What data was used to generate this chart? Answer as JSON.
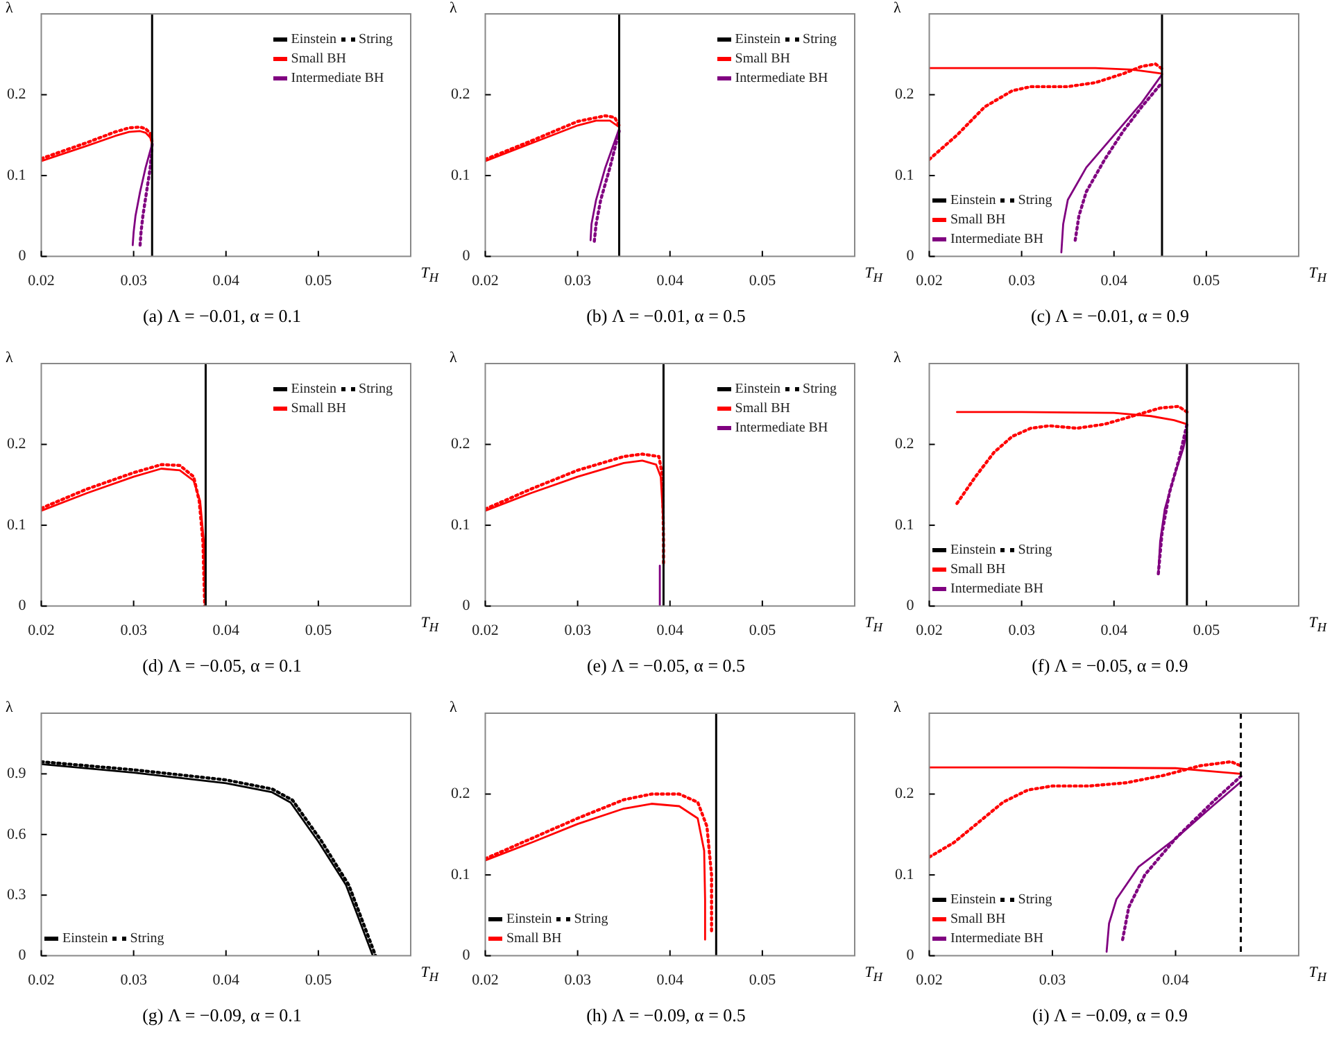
{
  "chart_data": [
    {
      "type": "line",
      "title": "(a) Λ = −0.01, α = 0.1",
      "xlabel": "T$_{H}$",
      "ylabel": "λ",
      "xlim": [
        0.02,
        0.06
      ],
      "xticks": [
        0.02,
        0.03,
        0.04,
        0.05
      ],
      "ylim": [
        0,
        0.3
      ],
      "yticks": [
        0,
        0.1,
        0.2
      ],
      "legend": "top right",
      "annotations": [
        "Einstein",
        "String"
      ],
      "ref_lines": [
        {
          "axis": "x",
          "value": 0.032,
          "color": "#000000",
          "line_style": "solid"
        }
      ],
      "series": [
        {
          "name": "Small BH",
          "color": "#ff0000",
          "line_style": "solid",
          "x": [
            0.02,
            0.025,
            0.028,
            0.0295,
            0.0307,
            0.0313,
            0.0318,
            0.032
          ],
          "values": [
            0.118,
            0.137,
            0.149,
            0.154,
            0.155,
            0.153,
            0.147,
            0.139
          ]
        },
        {
          "color": "#ff0000",
          "line_style": "dotted",
          "x": [
            0.02,
            0.025,
            0.028,
            0.0295,
            0.0307,
            0.0313,
            0.0318,
            0.032
          ],
          "values": [
            0.121,
            0.141,
            0.154,
            0.159,
            0.16,
            0.158,
            0.152,
            0.142
          ]
        },
        {
          "name": "Intermediate BH",
          "color": "#800080",
          "line_style": "solid",
          "x": [
            0.032,
            0.0313,
            0.0307,
            0.0302,
            0.03,
            0.0299
          ],
          "values": [
            0.139,
            0.11,
            0.08,
            0.05,
            0.03,
            0.014
          ]
        },
        {
          "color": "#800080",
          "line_style": "dotted",
          "x": [
            0.032,
            0.0318,
            0.0314,
            0.031,
            0.0308,
            0.0307
          ],
          "values": [
            0.139,
            0.11,
            0.08,
            0.05,
            0.03,
            0.014
          ]
        }
      ]
    },
    {
      "type": "line",
      "title": "(b) Λ = −0.01, α = 0.5",
      "xlabel": "T$_{H}$",
      "ylabel": "λ",
      "xlim": [
        0.02,
        0.06
      ],
      "xticks": [
        0.02,
        0.03,
        0.04,
        0.05
      ],
      "ylim": [
        0,
        0.3
      ],
      "yticks": [
        0,
        0.1,
        0.2
      ],
      "legend": "top right",
      "annotations": [
        "Einstein",
        "String"
      ],
      "ref_lines": [
        {
          "axis": "x",
          "value": 0.0345,
          "color": "#000000",
          "line_style": "solid"
        }
      ],
      "series": [
        {
          "name": "Small BH",
          "color": "#ff0000",
          "line_style": "solid",
          "x": [
            0.02,
            0.025,
            0.03,
            0.032,
            0.0335,
            0.0345
          ],
          "values": [
            0.118,
            0.14,
            0.162,
            0.168,
            0.168,
            0.16
          ]
        },
        {
          "color": "#ff0000",
          "line_style": "dotted",
          "x": [
            0.02,
            0.025,
            0.03,
            0.033,
            0.034,
            0.0345
          ],
          "values": [
            0.12,
            0.143,
            0.167,
            0.174,
            0.172,
            0.162
          ]
        },
        {
          "name": "Intermediate BH",
          "color": "#800080",
          "line_style": "solid",
          "x": [
            0.0345,
            0.033,
            0.032,
            0.0315,
            0.0314
          ],
          "values": [
            0.158,
            0.11,
            0.07,
            0.04,
            0.02
          ]
        },
        {
          "color": "#800080",
          "line_style": "dotted",
          "x": [
            0.0345,
            0.0335,
            0.0325,
            0.032,
            0.0318
          ],
          "values": [
            0.155,
            0.11,
            0.07,
            0.04,
            0.018
          ]
        }
      ]
    },
    {
      "type": "line",
      "title": "(c) Λ = −0.01, α = 0.9",
      "xlabel": "T$_{H}$",
      "ylabel": "λ",
      "xlim": [
        0.02,
        0.06
      ],
      "xticks": [
        0.02,
        0.03,
        0.04,
        0.05
      ],
      "ylim": [
        0,
        0.3
      ],
      "yticks": [
        0,
        0.1,
        0.2
      ],
      "legend": "bottom left",
      "annotations": [
        "Einstein",
        "String"
      ],
      "ref_lines": [
        {
          "axis": "x",
          "value": 0.0452,
          "color": "#000000",
          "line_style": "solid"
        }
      ],
      "series": [
        {
          "name": "Small BH",
          "color": "#ff0000",
          "line_style": "solid",
          "x": [
            0.02,
            0.03,
            0.038,
            0.042,
            0.044,
            0.0452
          ],
          "values": [
            0.233,
            0.233,
            0.233,
            0.231,
            0.228,
            0.226
          ]
        },
        {
          "color": "#ff0000",
          "line_style": "dotted",
          "x": [
            0.02,
            0.023,
            0.026,
            0.029,
            0.031,
            0.035,
            0.038,
            0.041,
            0.043,
            0.0445,
            0.0452
          ],
          "values": [
            0.12,
            0.15,
            0.185,
            0.205,
            0.21,
            0.21,
            0.215,
            0.226,
            0.235,
            0.238,
            0.232
          ]
        },
        {
          "name": "Intermediate BH",
          "color": "#800080",
          "line_style": "solid",
          "x": [
            0.0343,
            0.0345,
            0.035,
            0.037,
            0.04,
            0.043,
            0.0452
          ],
          "values": [
            0.005,
            0.04,
            0.07,
            0.11,
            0.15,
            0.19,
            0.225
          ]
        },
        {
          "color": "#800080",
          "line_style": "dotted",
          "x": [
            0.0358,
            0.0362,
            0.037,
            0.039,
            0.041,
            0.043,
            0.0452
          ],
          "values": [
            0.02,
            0.05,
            0.08,
            0.12,
            0.155,
            0.185,
            0.215
          ]
        }
      ]
    },
    {
      "type": "line",
      "title": "(d) Λ = −0.05, α = 0.1",
      "xlabel": "T$_{H}$",
      "ylabel": "λ",
      "xlim": [
        0.02,
        0.06
      ],
      "xticks": [
        0.02,
        0.03,
        0.04,
        0.05
      ],
      "ylim": [
        0,
        0.3
      ],
      "yticks": [
        0,
        0.1,
        0.2
      ],
      "legend": "top right",
      "annotations": [
        "Einstein",
        "String"
      ],
      "ref_lines": [
        {
          "axis": "x",
          "value": 0.0378,
          "color": "#000000",
          "line_style": "solid"
        }
      ],
      "series": [
        {
          "name": "Small BH",
          "color": "#ff0000",
          "line_style": "solid",
          "x": [
            0.02,
            0.025,
            0.03,
            0.033,
            0.035,
            0.0365,
            0.0372,
            0.0376,
            0.0378
          ],
          "values": [
            0.118,
            0.14,
            0.16,
            0.17,
            0.168,
            0.155,
            0.13,
            0.08,
            0
          ]
        },
        {
          "color": "#ff0000",
          "line_style": "dotted",
          "x": [
            0.02,
            0.025,
            0.03,
            0.033,
            0.035,
            0.0365,
            0.0371,
            0.0375,
            0.0377
          ],
          "values": [
            0.121,
            0.145,
            0.165,
            0.175,
            0.174,
            0.16,
            0.13,
            0.08,
            0
          ]
        }
      ]
    },
    {
      "type": "line",
      "title": "(e) Λ = −0.05, α = 0.5",
      "xlabel": "T$_{H}$",
      "ylabel": "λ",
      "xlim": [
        0.02,
        0.06
      ],
      "xticks": [
        0.02,
        0.03,
        0.04,
        0.05
      ],
      "ylim": [
        0,
        0.3
      ],
      "yticks": [
        0,
        0.1,
        0.2
      ],
      "legend": "top right",
      "annotations": [
        "Einstein",
        "String"
      ],
      "ref_lines": [
        {
          "axis": "x",
          "value": 0.0393,
          "color": "#000000",
          "line_style": "solid"
        }
      ],
      "series": [
        {
          "name": "Small BH",
          "color": "#ff0000",
          "line_style": "solid",
          "x": [
            0.02,
            0.025,
            0.03,
            0.035,
            0.037,
            0.0385,
            0.039,
            0.0393,
            0.0393
          ],
          "values": [
            0.118,
            0.14,
            0.16,
            0.177,
            0.18,
            0.175,
            0.16,
            0.1,
            0.05
          ]
        },
        {
          "color": "#ff0000",
          "line_style": "dotted",
          "x": [
            0.02,
            0.025,
            0.03,
            0.035,
            0.037,
            0.0388,
            0.0392,
            0.0393,
            0.0393
          ],
          "values": [
            0.12,
            0.145,
            0.168,
            0.185,
            0.188,
            0.185,
            0.16,
            0.08,
            0.05
          ]
        },
        {
          "name": "Intermediate BH",
          "color": "#800080",
          "line_style": "solid",
          "x": [
            0.0389,
            0.0389
          ],
          "values": [
            0.05,
            0
          ]
        }
      ]
    },
    {
      "type": "line",
      "title": "(f) Λ = −0.05, α = 0.9",
      "xlabel": "T$_{H}$",
      "ylabel": "λ",
      "xlim": [
        0.02,
        0.06
      ],
      "xticks": [
        0.02,
        0.03,
        0.04,
        0.05
      ],
      "ylim": [
        0,
        0.3
      ],
      "yticks": [
        0,
        0.1,
        0.2
      ],
      "legend": "bottom left",
      "annotations": [
        "Einstein",
        "String"
      ],
      "ref_lines": [
        {
          "axis": "x",
          "value": 0.0479,
          "color": "#000000",
          "line_style": "solid"
        }
      ],
      "series": [
        {
          "name": "Small BH",
          "color": "#ff0000",
          "line_style": "solid",
          "x": [
            0.023,
            0.03,
            0.04,
            0.044,
            0.0465,
            0.0479
          ],
          "values": [
            0.24,
            0.24,
            0.239,
            0.235,
            0.23,
            0.225
          ]
        },
        {
          "color": "#ff0000",
          "line_style": "dotted",
          "x": [
            0.023,
            0.025,
            0.027,
            0.029,
            0.031,
            0.033,
            0.036,
            0.039,
            0.042,
            0.045,
            0.047,
            0.0479
          ],
          "values": [
            0.127,
            0.16,
            0.19,
            0.21,
            0.22,
            0.223,
            0.22,
            0.225,
            0.235,
            0.245,
            0.247,
            0.24
          ]
        },
        {
          "name": "Intermediate BH",
          "color": "#800080",
          "line_style": "solid",
          "x": [
            0.0448,
            0.045,
            0.0455,
            0.0465,
            0.0475,
            0.0479
          ],
          "values": [
            0.04,
            0.08,
            0.12,
            0.16,
            0.195,
            0.215
          ]
        },
        {
          "color": "#800080",
          "line_style": "dotted",
          "x": [
            0.0448,
            0.0452,
            0.046,
            0.047,
            0.0479
          ],
          "values": [
            0.04,
            0.09,
            0.14,
            0.18,
            0.225
          ]
        }
      ]
    },
    {
      "type": "line",
      "title": "(g) Λ = −0.09, α = 0.1",
      "xlabel": "T$_{H}$",
      "ylabel": "λ",
      "xlim": [
        0.02,
        0.06
      ],
      "xticks": [
        0.02,
        0.03,
        0.04,
        0.05
      ],
      "ylim": [
        0,
        1.2
      ],
      "yticks": [
        0,
        0.3,
        0.6,
        0.9
      ],
      "legend": "bottom left",
      "series": [
        {
          "name": "Einstein",
          "color": "#000000",
          "line_style": "solid",
          "x": [
            0.02,
            0.03,
            0.04,
            0.045,
            0.047,
            0.05,
            0.053,
            0.0559
          ],
          "values": [
            0.948,
            0.906,
            0.854,
            0.809,
            0.758,
            0.565,
            0.35,
            0
          ]
        },
        {
          "name": "String",
          "color": "#000000",
          "line_style": "dotted",
          "x": [
            0.02,
            0.03,
            0.04,
            0.045,
            0.0472,
            0.0503,
            0.0533,
            0.0562
          ],
          "values": [
            0.96,
            0.92,
            0.87,
            0.825,
            0.77,
            0.57,
            0.35,
            0
          ]
        }
      ]
    },
    {
      "type": "line",
      "title": "(h) Λ = −0.09, α = 0.5",
      "xlabel": "T$_{H}$",
      "ylabel": "λ",
      "xlim": [
        0.02,
        0.06
      ],
      "xticks": [
        0.02,
        0.03,
        0.04,
        0.05
      ],
      "ylim": [
        0,
        0.3
      ],
      "yticks": [
        0,
        0.1,
        0.2
      ],
      "legend": "bottom left",
      "annotations": [
        "Einstein",
        "String"
      ],
      "ref_lines": [
        {
          "axis": "x",
          "value": 0.045,
          "color": "#000000",
          "line_style": "solid"
        }
      ],
      "series": [
        {
          "name": "Small BH",
          "color": "#ff0000",
          "line_style": "solid",
          "x": [
            0.02,
            0.025,
            0.03,
            0.035,
            0.038,
            0.041,
            0.043,
            0.0437,
            0.0438,
            0.0438
          ],
          "values": [
            0.118,
            0.14,
            0.163,
            0.182,
            0.188,
            0.185,
            0.17,
            0.13,
            0.07,
            0.02
          ]
        },
        {
          "color": "#ff0000",
          "line_style": "dotted",
          "x": [
            0.02,
            0.025,
            0.03,
            0.035,
            0.038,
            0.041,
            0.043,
            0.044,
            0.0445,
            0.0445
          ],
          "values": [
            0.12,
            0.145,
            0.17,
            0.193,
            0.2,
            0.2,
            0.19,
            0.16,
            0.1,
            0.03
          ]
        }
      ]
    },
    {
      "type": "line",
      "title": "(i) Λ = −0.09, α = 0.9",
      "xlabel": "T$_{H}$",
      "ylabel": "λ",
      "xlim": [
        0.02,
        0.05
      ],
      "xticks": [
        0.02,
        0.03,
        0.04
      ],
      "ylim": [
        0,
        0.3
      ],
      "yticks": [
        0,
        0.1,
        0.2
      ],
      "legend": "bottom left",
      "annotations": [
        "Einstein",
        "String"
      ],
      "ref_lines": [
        {
          "axis": "x",
          "value": 0.0453,
          "color": "#000000",
          "line_style": "dashed"
        }
      ],
      "series": [
        {
          "name": "Small BH",
          "color": "#ff0000",
          "line_style": "solid",
          "x": [
            0.02,
            0.03,
            0.04,
            0.043,
            0.0453
          ],
          "values": [
            0.233,
            0.233,
            0.232,
            0.228,
            0.225
          ]
        },
        {
          "color": "#ff0000",
          "line_style": "dotted",
          "x": [
            0.02,
            0.022,
            0.024,
            0.026,
            0.028,
            0.03,
            0.033,
            0.036,
            0.039,
            0.042,
            0.0445,
            0.0453
          ],
          "values": [
            0.122,
            0.14,
            0.165,
            0.19,
            0.205,
            0.21,
            0.21,
            0.214,
            0.223,
            0.235,
            0.24,
            0.235
          ]
        },
        {
          "name": "Intermediate BH",
          "color": "#800080",
          "line_style": "solid",
          "x": [
            0.0344,
            0.0346,
            0.0352,
            0.037,
            0.04,
            0.043,
            0.0453
          ],
          "values": [
            0.005,
            0.04,
            0.07,
            0.11,
            0.145,
            0.185,
            0.215
          ]
        },
        {
          "color": "#800080",
          "line_style": "dotted",
          "x": [
            0.0357,
            0.0362,
            0.0375,
            0.04,
            0.043,
            0.0453
          ],
          "values": [
            0.02,
            0.06,
            0.1,
            0.145,
            0.19,
            0.222
          ]
        }
      ]
    }
  ]
}
